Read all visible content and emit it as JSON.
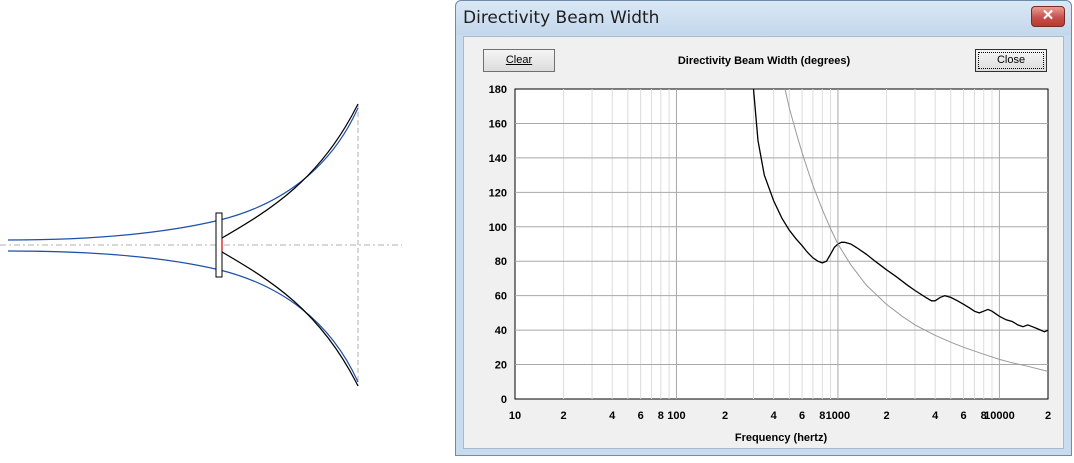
{
  "window": {
    "title": "Directivity Beam Width",
    "close_glyph": "✕"
  },
  "toolbar": {
    "clear_label": "Clear",
    "close_label": "Close"
  },
  "colors": {
    "horn_profile_a": "#1f4faa",
    "horn_profile_b": "#000000",
    "throat_marker": "#d40000",
    "axis_dash": "#b0b0b0",
    "title_bar": "#c9dcef",
    "close_button": "#c75050"
  },
  "chart_data": {
    "type": "line",
    "title": "Directivity Beam Width (degrees)",
    "xlabel": "Frequency (hertz)",
    "ylabel": "",
    "x_scale": "log",
    "xlim": [
      10,
      20000
    ],
    "ylim": [
      0,
      180
    ],
    "grid": true,
    "y_ticks": [
      "0",
      "20",
      "40",
      "60",
      "80",
      "100",
      "120",
      "140",
      "160",
      "180"
    ],
    "x_ticks": [
      {
        "value": 10,
        "label": "10"
      },
      {
        "value": 20,
        "label": "2"
      },
      {
        "value": 40,
        "label": "4"
      },
      {
        "value": 60,
        "label": "6"
      },
      {
        "value": 80,
        "label": "8"
      },
      {
        "value": 100,
        "label": "100"
      },
      {
        "value": 200,
        "label": "2"
      },
      {
        "value": 400,
        "label": "4"
      },
      {
        "value": 600,
        "label": "6"
      },
      {
        "value": 800,
        "label": "8"
      },
      {
        "value": 1000,
        "label": "1000"
      },
      {
        "value": 2000,
        "label": "2"
      },
      {
        "value": 4000,
        "label": "4"
      },
      {
        "value": 6000,
        "label": "6"
      },
      {
        "value": 8000,
        "label": "8"
      },
      {
        "value": 10000,
        "label": "10000"
      },
      {
        "value": 20000,
        "label": "2"
      }
    ],
    "series": [
      {
        "color": "#000000",
        "points": [
          [
            300,
            180
          ],
          [
            320,
            150
          ],
          [
            350,
            130
          ],
          [
            400,
            115
          ],
          [
            450,
            105
          ],
          [
            500,
            98
          ],
          [
            550,
            93
          ],
          [
            600,
            89
          ],
          [
            650,
            85
          ],
          [
            700,
            82
          ],
          [
            750,
            80
          ],
          [
            800,
            79
          ],
          [
            850,
            80
          ],
          [
            900,
            84
          ],
          [
            950,
            88
          ],
          [
            1000,
            90
          ],
          [
            1050,
            91
          ],
          [
            1100,
            91
          ],
          [
            1200,
            90
          ],
          [
            1300,
            88
          ],
          [
            1500,
            84
          ],
          [
            1700,
            80
          ],
          [
            2000,
            75
          ],
          [
            2300,
            71
          ],
          [
            2700,
            66
          ],
          [
            3000,
            63
          ],
          [
            3500,
            59
          ],
          [
            3800,
            57
          ],
          [
            4000,
            57
          ],
          [
            4300,
            59
          ],
          [
            4600,
            60
          ],
          [
            5000,
            59
          ],
          [
            5500,
            57
          ],
          [
            6000,
            55
          ],
          [
            6500,
            53
          ],
          [
            7000,
            51
          ],
          [
            7500,
            50
          ],
          [
            8000,
            51
          ],
          [
            8500,
            52
          ],
          [
            9000,
            51
          ],
          [
            10000,
            48
          ],
          [
            11000,
            46
          ],
          [
            12000,
            45
          ],
          [
            13000,
            43
          ],
          [
            14000,
            42
          ],
          [
            15000,
            43
          ],
          [
            16000,
            42
          ],
          [
            17000,
            41
          ],
          [
            18000,
            40
          ],
          [
            19000,
            39
          ],
          [
            20000,
            40
          ]
        ]
      },
      {
        "color": "#9a9a9a",
        "points": [
          [
            470,
            180
          ],
          [
            500,
            169
          ],
          [
            550,
            155
          ],
          [
            600,
            143
          ],
          [
            650,
            133
          ],
          [
            700,
            124
          ],
          [
            800,
            110
          ],
          [
            900,
            99
          ],
          [
            1000,
            90
          ],
          [
            1200,
            78
          ],
          [
            1500,
            66
          ],
          [
            2000,
            55
          ],
          [
            2500,
            48
          ],
          [
            3000,
            43
          ],
          [
            4000,
            37
          ],
          [
            5000,
            33
          ],
          [
            6000,
            30
          ],
          [
            8000,
            26
          ],
          [
            10000,
            23
          ],
          [
            12000,
            21
          ],
          [
            15000,
            19
          ],
          [
            20000,
            16
          ]
        ]
      }
    ]
  }
}
